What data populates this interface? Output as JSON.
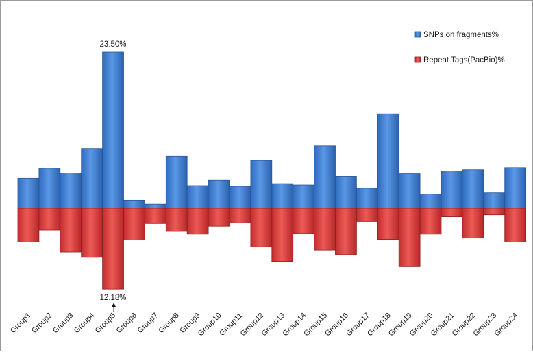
{
  "chart_data": {
    "type": "bar",
    "title": "",
    "xlabel": "",
    "ylabel": "",
    "categories": [
      "Group1",
      "Group2",
      "Group3",
      "Group4",
      "Group5",
      "Group6",
      "Group7",
      "Group8",
      "Group9",
      "Group10",
      "Group11",
      "Group12",
      "Group13",
      "Group14",
      "Group15",
      "Group16",
      "Group17",
      "Group18",
      "Group19",
      "Group20",
      "Group21",
      "Group22",
      "Group23",
      "Group24"
    ],
    "series": [
      {
        "name": "SNPs on fragments%",
        "color": "#3f7fd2",
        "direction": "up",
        "values": [
          4.5,
          6.0,
          5.3,
          9.0,
          23.5,
          1.2,
          0.6,
          7.8,
          3.4,
          4.2,
          3.3,
          7.2,
          3.7,
          3.5,
          9.4,
          4.8,
          3.0,
          14.2,
          5.2,
          2.1,
          5.6,
          5.8,
          2.3,
          6.1
        ]
      },
      {
        "name": "Repeat Tags(PacBio)%",
        "color": "#d13a3a",
        "direction": "down",
        "values": [
          5.1,
          3.3,
          6.6,
          7.4,
          12.18,
          4.8,
          2.3,
          3.5,
          3.9,
          2.7,
          2.2,
          5.8,
          8.0,
          3.8,
          6.3,
          7.0,
          2.0,
          4.7,
          8.8,
          3.9,
          1.3,
          4.5,
          1.0,
          5.1
        ]
      }
    ],
    "annotations": [
      {
        "label": "23.50%",
        "category": "Group5",
        "series": "SNPs on fragments%"
      },
      {
        "label": "12.18%",
        "category": "Group5",
        "series": "Repeat Tags(PacBio)%"
      }
    ],
    "legend": {
      "placement": "top-right",
      "entries": [
        "SNPs on fragments%",
        "Repeat Tags(PacBio)%"
      ]
    },
    "grid": false
  }
}
